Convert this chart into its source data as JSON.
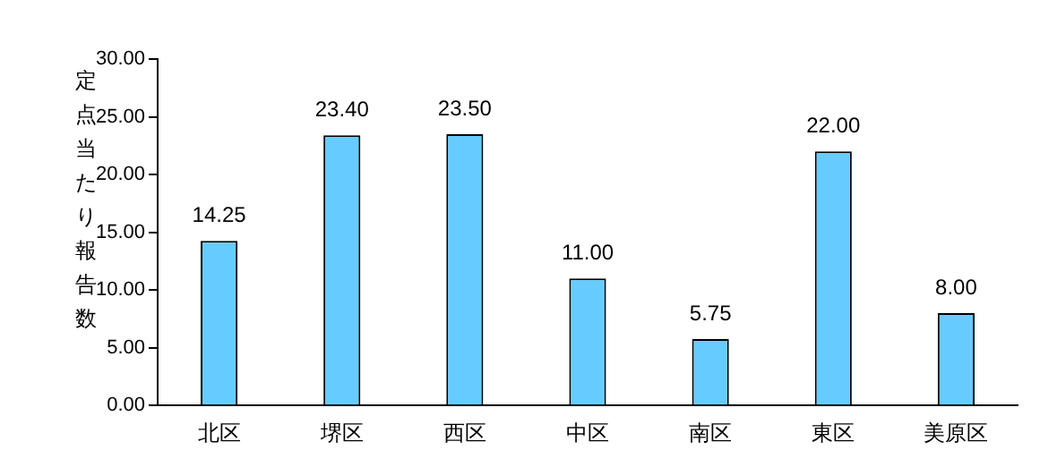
{
  "chart_data": {
    "type": "bar",
    "ylabel": "定点当たり報告数",
    "categories": [
      "北区",
      "堺区",
      "西区",
      "中区",
      "南区",
      "東区",
      "美原区"
    ],
    "values": [
      14.25,
      23.4,
      23.5,
      11.0,
      5.75,
      22.0,
      8.0
    ],
    "color": "#66ccff",
    "ylim": [
      0,
      30
    ],
    "yticks": [
      {
        "value": 0,
        "label": "0.00"
      },
      {
        "value": 5,
        "label": "5.00"
      },
      {
        "value": 10,
        "label": "10.00"
      },
      {
        "value": 15,
        "label": "15.00"
      },
      {
        "value": 20,
        "label": "20.00"
      },
      {
        "value": 25,
        "label": "25.00"
      },
      {
        "value": 30,
        "label": "30.00"
      }
    ],
    "grid": false,
    "legend": false,
    "data_labels": true,
    "value_labels": [
      "14.25",
      "23.40",
      "23.50",
      "11.00",
      "5.75",
      "22.00",
      "8.00"
    ]
  }
}
